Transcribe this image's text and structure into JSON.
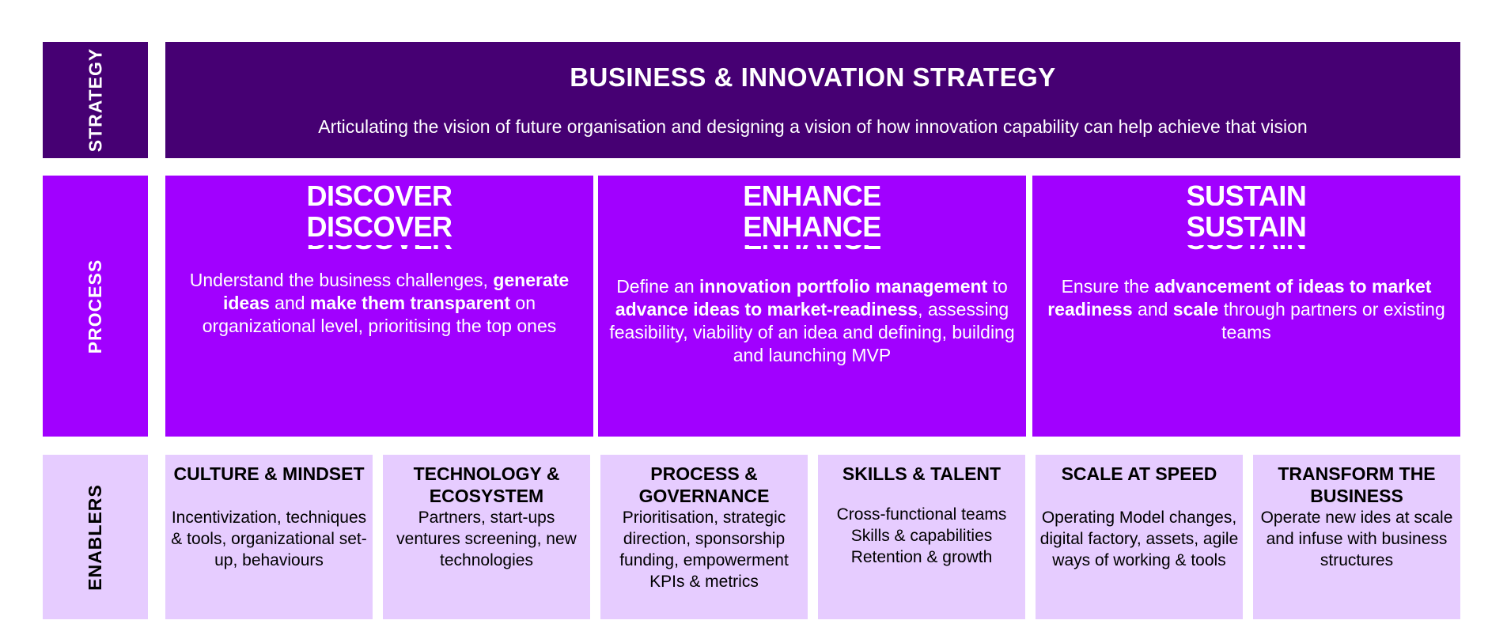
{
  "strategy": {
    "side_label": "STRATEGY",
    "title": "BUSINESS & INNOVATION STRATEGY",
    "description": "Articulating the vision of future organisation and designing a vision of how innovation capability can help achieve that vision"
  },
  "process": {
    "side_label": "PROCESS",
    "columns": [
      {
        "title": "DISCOVER",
        "parts": [
          {
            "text": "Understand the business challenges, ",
            "bold": false
          },
          {
            "text": "generate ideas",
            "bold": true
          },
          {
            "text": " and ",
            "bold": false
          },
          {
            "text": "make them transparent",
            "bold": true
          },
          {
            "text": " on organizational level, prioritising the top ones",
            "bold": false
          }
        ]
      },
      {
        "title": "ENHANCE",
        "parts": [
          {
            "text": "Define an ",
            "bold": false
          },
          {
            "text": "innovation portfolio management",
            "bold": true
          },
          {
            "text": " to ",
            "bold": false
          },
          {
            "text": "advance ideas to market-readiness",
            "bold": true
          },
          {
            "text": ", assessing feasibility, viability of an idea and defining, building and launching MVP",
            "bold": false
          }
        ]
      },
      {
        "title": "SUSTAIN",
        "parts": [
          {
            "text": "Ensure the ",
            "bold": false
          },
          {
            "text": "advancement of ideas to market readiness",
            "bold": true
          },
          {
            "text": " and ",
            "bold": false
          },
          {
            "text": "scale",
            "bold": true
          },
          {
            "text": " through partners or existing teams",
            "bold": false
          }
        ]
      }
    ]
  },
  "enablers": {
    "side_label": "ENABLERS",
    "items": [
      {
        "title": "CULTURE & MINDSET",
        "lines": [
          "Incentivization, techniques & tools, organizational set-up, behaviours"
        ]
      },
      {
        "title": "TECHNOLOGY & ECOSYSTEM",
        "lines": [
          "Partners, start-ups ventures screening, new technologies"
        ]
      },
      {
        "title": "PROCESS & GOVERNANCE",
        "lines": [
          "Prioritisation, strategic direction, sponsorship funding, empowerment",
          "KPIs & metrics"
        ]
      },
      {
        "title": "SKILLS & TALENT",
        "lines": [
          "Cross-functional teams",
          "Skills & capabilities",
          "Retention & growth"
        ]
      },
      {
        "title": "SCALE AT SPEED",
        "lines": [
          "Operating Model changes, digital factory, assets, agile ways of working & tools"
        ]
      },
      {
        "title": "TRANSFORM THE BUSINESS",
        "lines": [
          "Operate new ides at scale and infuse with business structures"
        ]
      }
    ]
  },
  "colors": {
    "strategy": "#460073",
    "process": "#a100ff",
    "enablers": "#e6ccff"
  }
}
